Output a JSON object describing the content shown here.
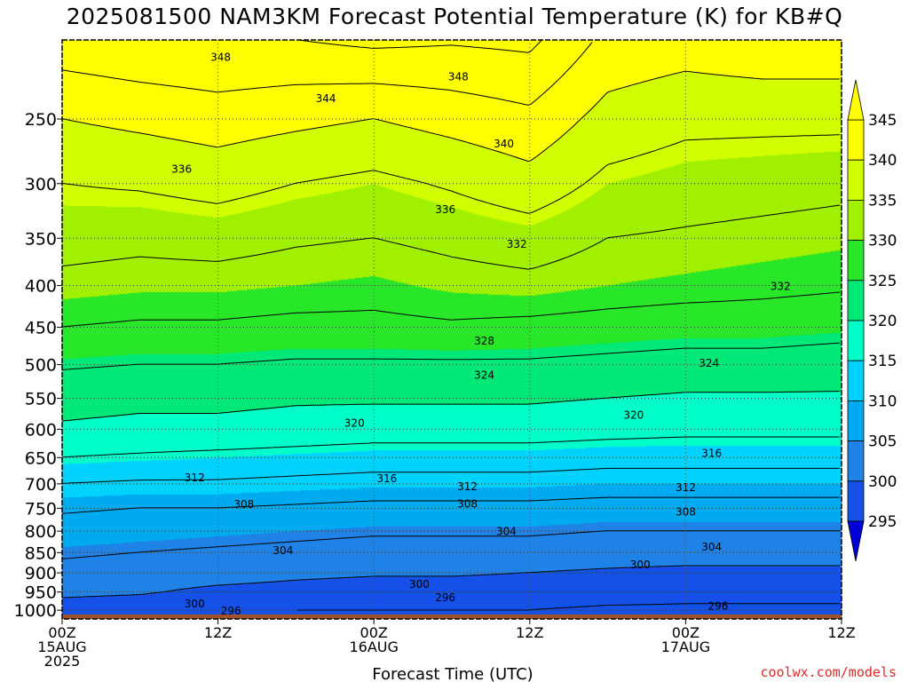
{
  "chart_data": {
    "type": "contour",
    "title": "2025081500 NAM3KM Forecast Potential Temperature (K) for KB#Q",
    "xlabel": "Forecast Time (UTC)",
    "ylabel": "",
    "x_ticks": [
      {
        "hour": 0,
        "lines": [
          "00Z",
          "15AUG",
          "2025"
        ]
      },
      {
        "hour": 12,
        "lines": [
          "12Z"
        ]
      },
      {
        "hour": 24,
        "lines": [
          "00Z",
          "16AUG"
        ]
      },
      {
        "hour": 36,
        "lines": [
          "12Z"
        ]
      },
      {
        "hour": 48,
        "lines": [
          "00Z",
          "17AUG"
        ]
      },
      {
        "hour": 60,
        "lines": [
          "12Z"
        ]
      }
    ],
    "xlim_hours": [
      0,
      60
    ],
    "y_ticks_hpa": [
      250,
      300,
      350,
      400,
      450,
      500,
      550,
      600,
      650,
      700,
      750,
      800,
      850,
      900,
      950,
      1000
    ],
    "ylim_hpa": [
      1025,
      200
    ],
    "colorbar": {
      "levels": [
        295,
        300,
        305,
        310,
        315,
        320,
        325,
        330,
        335,
        340,
        345
      ],
      "colors": [
        "#0000d8",
        "#1550e8",
        "#1e82e6",
        "#00aaf0",
        "#00d2ff",
        "#00ffc8",
        "#00e878",
        "#28e628",
        "#a0f000",
        "#d2ff00",
        "#ffff00",
        "#ffff00"
      ]
    },
    "theta_profiles": [
      {
        "hour": 0,
        "hpa": [
          1000,
          950,
          900,
          850,
          800,
          750,
          700,
          650,
          600,
          550,
          500,
          450,
          400,
          350,
          300,
          250,
          200
        ],
        "theta": [
          298.0,
          301.0,
          303.0,
          304.5,
          306.5,
          308.5,
          312.0,
          316.0,
          319.5,
          321.5,
          324.5,
          328.0,
          331.0,
          333.5,
          336.0,
          340.0,
          346.5
        ]
      },
      {
        "hour": 6,
        "hpa": [
          1000,
          950,
          900,
          850,
          800,
          750,
          700,
          650,
          600,
          550,
          500,
          450,
          400,
          350,
          300,
          250,
          200
        ],
        "theta": [
          297.5,
          300.5,
          302.5,
          304.0,
          306.0,
          308.0,
          311.5,
          315.5,
          319.0,
          321.0,
          324.0,
          327.5,
          330.5,
          333.0,
          336.5,
          341.0,
          347.5
        ]
      },
      {
        "hour": 12,
        "hpa": [
          1000,
          950,
          900,
          850,
          800,
          750,
          700,
          650,
          600,
          550,
          500,
          450,
          400,
          350,
          300,
          250,
          200
        ],
        "theta": [
          296.5,
          299.0,
          302.0,
          303.5,
          305.5,
          308.0,
          311.5,
          315.0,
          319.0,
          321.0,
          324.0,
          327.5,
          330.5,
          333.5,
          337.5,
          342.0,
          348.0
        ]
      },
      {
        "hour": 18,
        "hpa": [
          1000,
          950,
          900,
          850,
          800,
          750,
          700,
          650,
          600,
          550,
          500,
          450,
          400,
          350,
          300,
          250,
          200
        ],
        "theta": [
          296.0,
          298.5,
          301.0,
          303.0,
          305.0,
          307.5,
          311.0,
          314.5,
          318.5,
          320.5,
          323.5,
          327.0,
          330.0,
          332.5,
          336.0,
          341.0,
          348.0
        ]
      },
      {
        "hour": 24,
        "hpa": [
          1000,
          950,
          900,
          850,
          800,
          750,
          700,
          650,
          600,
          550,
          500,
          450,
          400,
          350,
          300,
          250,
          200
        ],
        "theta": [
          296.0,
          298.0,
          300.5,
          302.5,
          304.5,
          307.0,
          310.5,
          314.0,
          318.0,
          320.5,
          323.5,
          327.0,
          329.5,
          332.0,
          335.0,
          340.0,
          349.0
        ]
      },
      {
        "hour": 30,
        "hpa": [
          1000,
          950,
          900,
          850,
          800,
          750,
          700,
          650,
          600,
          550,
          500,
          450,
          400,
          350,
          300,
          250,
          200
        ],
        "theta": [
          296.0,
          298.0,
          300.5,
          302.5,
          304.5,
          307.0,
          310.5,
          314.0,
          318.0,
          320.5,
          323.5,
          327.5,
          330.5,
          333.0,
          336.5,
          341.5,
          348.5
        ]
      },
      {
        "hour": 36,
        "hpa": [
          1000,
          950,
          900,
          850,
          800,
          750,
          700,
          650,
          600,
          550,
          500,
          450,
          400,
          350,
          300,
          250,
          200
        ],
        "theta": [
          296.0,
          298.0,
          300.0,
          302.5,
          304.5,
          307.0,
          310.5,
          314.0,
          318.0,
          320.5,
          323.5,
          327.0,
          331.0,
          334.0,
          338.5,
          343.0,
          349.0
        ]
      },
      {
        "hour": 42,
        "hpa": [
          1000,
          950,
          900,
          850,
          800,
          750,
          700,
          650,
          600,
          550,
          500,
          450,
          400,
          350,
          300,
          250,
          200
        ],
        "theta": [
          295.5,
          297.5,
          299.5,
          302.0,
          304.0,
          306.5,
          310.0,
          313.5,
          317.5,
          320.0,
          323.0,
          326.5,
          330.0,
          332.0,
          335.0,
          338.5,
          343.0
        ]
      },
      {
        "hour": 48,
        "hpa": [
          1000,
          950,
          900,
          850,
          800,
          750,
          700,
          650,
          600,
          550,
          500,
          450,
          400,
          350,
          300,
          250,
          200
        ],
        "theta": [
          295.5,
          297.0,
          299.0,
          302.0,
          304.0,
          306.5,
          310.0,
          313.5,
          317.0,
          319.5,
          322.5,
          326.0,
          329.5,
          331.5,
          334.0,
          337.0,
          342.0
        ]
      },
      {
        "hour": 54,
        "hpa": [
          1000,
          950,
          900,
          850,
          800,
          750,
          700,
          650,
          600,
          550,
          500,
          450,
          400,
          350,
          300,
          250,
          200
        ],
        "theta": [
          295.5,
          297.0,
          299.0,
          302.0,
          304.0,
          306.5,
          310.0,
          313.5,
          317.0,
          319.5,
          322.5,
          326.0,
          329.0,
          331.0,
          333.5,
          337.0,
          343.0
        ]
      },
      {
        "hour": 60,
        "hpa": [
          1000,
          950,
          900,
          850,
          800,
          750,
          700,
          650,
          600,
          550,
          500,
          450,
          400,
          350,
          300,
          250,
          200
        ],
        "theta": [
          295.5,
          297.0,
          299.0,
          302.0,
          304.0,
          306.5,
          310.0,
          313.5,
          317.0,
          319.5,
          322.0,
          325.5,
          328.5,
          330.5,
          333.0,
          337.0,
          343.0
        ]
      }
    ],
    "contour_labels": [
      {
        "text": "348",
        "hour": 12.2,
        "hpa": 210
      },
      {
        "text": "348",
        "hour": 30.5,
        "hpa": 222
      },
      {
        "text": "344",
        "hour": 20.3,
        "hpa": 236
      },
      {
        "text": "340",
        "hour": 34.0,
        "hpa": 268
      },
      {
        "text": "336",
        "hour": 9.2,
        "hpa": 288
      },
      {
        "text": "336",
        "hour": 29.5,
        "hpa": 323
      },
      {
        "text": "332",
        "hour": 35.0,
        "hpa": 356
      },
      {
        "text": "332",
        "hour": 55.3,
        "hpa": 401
      },
      {
        "text": "328",
        "hour": 32.5,
        "hpa": 468
      },
      {
        "text": "324",
        "hour": 32.5,
        "hpa": 515
      },
      {
        "text": "324",
        "hour": 49.8,
        "hpa": 498
      },
      {
        "text": "320",
        "hour": 22.5,
        "hpa": 590
      },
      {
        "text": "320",
        "hour": 44.0,
        "hpa": 577
      },
      {
        "text": "316",
        "hour": 50.0,
        "hpa": 642
      },
      {
        "text": "316",
        "hour": 25.0,
        "hpa": 690
      },
      {
        "text": "312",
        "hour": 10.2,
        "hpa": 688
      },
      {
        "text": "312",
        "hour": 31.2,
        "hpa": 706
      },
      {
        "text": "312",
        "hour": 48.0,
        "hpa": 707
      },
      {
        "text": "308",
        "hour": 14.0,
        "hpa": 742
      },
      {
        "text": "308",
        "hour": 31.2,
        "hpa": 741
      },
      {
        "text": "308",
        "hour": 48.0,
        "hpa": 758
      },
      {
        "text": "304",
        "hour": 17.0,
        "hpa": 845
      },
      {
        "text": "304",
        "hour": 34.2,
        "hpa": 801
      },
      {
        "text": "304",
        "hour": 50.0,
        "hpa": 837
      },
      {
        "text": "300",
        "hour": 27.5,
        "hpa": 930
      },
      {
        "text": "300",
        "hour": 44.5,
        "hpa": 880
      },
      {
        "text": "300",
        "hour": 10.2,
        "hpa": 982
      },
      {
        "text": "296",
        "hour": 29.5,
        "hpa": 965
      },
      {
        "text": "296",
        "hour": 50.5,
        "hpa": 988
      },
      {
        "text": "296",
        "hour": 13.0,
        "hpa": 1002
      }
    ]
  },
  "credit": "coolwx.com/models"
}
